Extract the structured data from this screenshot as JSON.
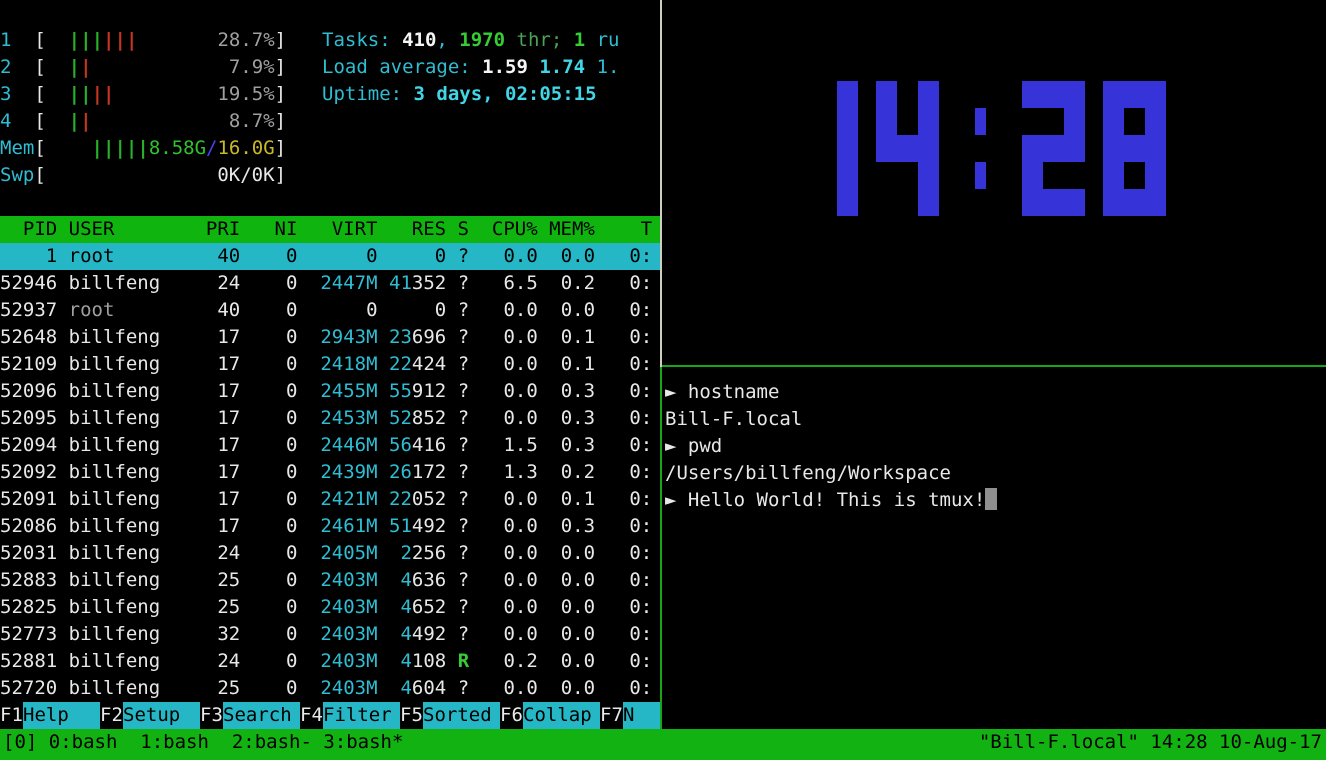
{
  "htop": {
    "meters": {
      "cpus": [
        {
          "label": "1",
          "bars": [
            "g",
            "g",
            "g",
            "r",
            "r",
            "r"
          ],
          "pct": "28.7%"
        },
        {
          "label": "2",
          "bars": [
            "g",
            "r"
          ],
          "pct": "7.9%"
        },
        {
          "label": "3",
          "bars": [
            "g",
            "g",
            "r",
            "r"
          ],
          "pct": "19.5%"
        },
        {
          "label": "4",
          "bars": [
            "g",
            "r"
          ],
          "pct": "8.7%"
        }
      ],
      "mem": {
        "label": "Mem",
        "bar_count": 5,
        "used": "8.58G",
        "separator": "/",
        "total": "16.0G"
      },
      "swp": {
        "label": "Swp",
        "value": "0K/0K"
      }
    },
    "summary_lines": [
      [
        {
          "t": "Tasks: ",
          "s": "cyan"
        },
        {
          "t": "410",
          "s": "whiteb"
        },
        {
          "t": ", ",
          "s": "cyan"
        },
        {
          "t": "1970",
          "s": "greenb"
        },
        {
          "t": " thr; ",
          "s": "greend"
        },
        {
          "t": "1",
          "s": "greenb"
        },
        {
          "t": " ru",
          "s": "cyan"
        }
      ],
      [
        {
          "t": "Load average: ",
          "s": "cyan"
        },
        {
          "t": "1.59 ",
          "s": "whiteb"
        },
        {
          "t": "1.74 ",
          "s": "cyanb"
        },
        {
          "t": "1.",
          "s": "cyan"
        }
      ],
      [
        {
          "t": "Uptime: ",
          "s": "cyan"
        },
        {
          "t": "3 days, 02:05:15",
          "s": "cyanb"
        }
      ]
    ],
    "table": {
      "header": {
        "pid": "PID",
        "user": "USER",
        "pri": "PRI",
        "ni": "NI",
        "virt": "VIRT",
        "res": "RES",
        "s": "S",
        "cpu": "CPU%",
        "mem": "MEM%",
        "time": "T"
      },
      "rows": [
        {
          "pid": "1",
          "user": "root",
          "pri": "40",
          "ni": "0",
          "virt": "0",
          "res_hi": "",
          "res_lo": "0",
          "s": "?",
          "cpu": "0.0",
          "mem": "0.0",
          "time": "0:",
          "selected": true
        },
        {
          "pid": "52946",
          "user": "billfeng",
          "pri": "24",
          "ni": "0",
          "virt": "2447M",
          "res_hi": "41",
          "res_lo": "352",
          "s": "?",
          "cpu": "6.5",
          "mem": "0.2",
          "time": "0:"
        },
        {
          "pid": "52937",
          "user": "root",
          "pri": "40",
          "ni": "0",
          "virt": "0",
          "res_hi": "",
          "res_lo": "0",
          "s": "?",
          "cpu": "0.0",
          "mem": "0.0",
          "time": "0:"
        },
        {
          "pid": "52648",
          "user": "billfeng",
          "pri": "17",
          "ni": "0",
          "virt": "2943M",
          "res_hi": "23",
          "res_lo": "696",
          "s": "?",
          "cpu": "0.0",
          "mem": "0.1",
          "time": "0:"
        },
        {
          "pid": "52109",
          "user": "billfeng",
          "pri": "17",
          "ni": "0",
          "virt": "2418M",
          "res_hi": "22",
          "res_lo": "424",
          "s": "?",
          "cpu": "0.0",
          "mem": "0.1",
          "time": "0:"
        },
        {
          "pid": "52096",
          "user": "billfeng",
          "pri": "17",
          "ni": "0",
          "virt": "2455M",
          "res_hi": "55",
          "res_lo": "912",
          "s": "?",
          "cpu": "0.0",
          "mem": "0.3",
          "time": "0:"
        },
        {
          "pid": "52095",
          "user": "billfeng",
          "pri": "17",
          "ni": "0",
          "virt": "2453M",
          "res_hi": "52",
          "res_lo": "852",
          "s": "?",
          "cpu": "0.0",
          "mem": "0.3",
          "time": "0:"
        },
        {
          "pid": "52094",
          "user": "billfeng",
          "pri": "17",
          "ni": "0",
          "virt": "2446M",
          "res_hi": "56",
          "res_lo": "416",
          "s": "?",
          "cpu": "1.5",
          "mem": "0.3",
          "time": "0:"
        },
        {
          "pid": "52092",
          "user": "billfeng",
          "pri": "17",
          "ni": "0",
          "virt": "2439M",
          "res_hi": "26",
          "res_lo": "172",
          "s": "?",
          "cpu": "1.3",
          "mem": "0.2",
          "time": "0:"
        },
        {
          "pid": "52091",
          "user": "billfeng",
          "pri": "17",
          "ni": "0",
          "virt": "2421M",
          "res_hi": "22",
          "res_lo": "052",
          "s": "?",
          "cpu": "0.0",
          "mem": "0.1",
          "time": "0:"
        },
        {
          "pid": "52086",
          "user": "billfeng",
          "pri": "17",
          "ni": "0",
          "virt": "2461M",
          "res_hi": "51",
          "res_lo": "492",
          "s": "?",
          "cpu": "0.0",
          "mem": "0.3",
          "time": "0:"
        },
        {
          "pid": "52031",
          "user": "billfeng",
          "pri": "24",
          "ni": "0",
          "virt": "2405M",
          "res_hi": "2",
          "res_lo": "256",
          "s": "?",
          "cpu": "0.0",
          "mem": "0.0",
          "time": "0:"
        },
        {
          "pid": "52883",
          "user": "billfeng",
          "pri": "25",
          "ni": "0",
          "virt": "2403M",
          "res_hi": "4",
          "res_lo": "636",
          "s": "?",
          "cpu": "0.0",
          "mem": "0.0",
          "time": "0:"
        },
        {
          "pid": "52825",
          "user": "billfeng",
          "pri": "25",
          "ni": "0",
          "virt": "2403M",
          "res_hi": "4",
          "res_lo": "652",
          "s": "?",
          "cpu": "0.0",
          "mem": "0.0",
          "time": "0:"
        },
        {
          "pid": "52773",
          "user": "billfeng",
          "pri": "32",
          "ni": "0",
          "virt": "2403M",
          "res_hi": "4",
          "res_lo": "492",
          "s": "?",
          "cpu": "0.0",
          "mem": "0.0",
          "time": "0:"
        },
        {
          "pid": "52881",
          "user": "billfeng",
          "pri": "24",
          "ni": "0",
          "virt": "2403M",
          "res_hi": "4",
          "res_lo": "108",
          "s": "R",
          "cpu": "0.2",
          "mem": "0.0",
          "time": "0:"
        },
        {
          "pid": "52720",
          "user": "billfeng",
          "pri": "25",
          "ni": "0",
          "virt": "2403M",
          "res_hi": "4",
          "res_lo": "604",
          "s": "?",
          "cpu": "0.0",
          "mem": "0.0",
          "time": "0:"
        }
      ]
    },
    "fkeys": [
      {
        "key": "F1",
        "label": "Help"
      },
      {
        "key": "F2",
        "label": "Setup"
      },
      {
        "key": "F3",
        "label": "Search"
      },
      {
        "key": "F4",
        "label": "Filter"
      },
      {
        "key": "F5",
        "label": "Sorted"
      },
      {
        "key": "F6",
        "label": "Collap"
      },
      {
        "key": "F7",
        "label": "N"
      }
    ]
  },
  "clock": {
    "time": "14:28"
  },
  "terminal": {
    "prompt_symbol": "►",
    "lines": [
      {
        "prompt": true,
        "text": "hostname"
      },
      {
        "prompt": false,
        "text": "Bill-F.local"
      },
      {
        "prompt": true,
        "text": "pwd"
      },
      {
        "prompt": false,
        "text": "/Users/billfeng/Workspace"
      },
      {
        "prompt": true,
        "text": "Hello World! This is tmux!",
        "cursor": true
      }
    ]
  },
  "statusbar": {
    "session_label": "[0] ",
    "windows": [
      "0:bash ",
      "1:bash ",
      "2:bash-",
      "3:bash*"
    ],
    "right": "\"Bill-F.local\" 14:28 10-Aug-17"
  },
  "colors": {
    "status_green": "#12b212",
    "header_green": "#0fb40f",
    "selection_cyan": "#25b7c5",
    "fkey_cyan": "#25b7c5",
    "clock_blue": "#3634d9",
    "text_cyan": "#2fbdd3",
    "text_cyan_bright": "#41d6e6",
    "text_green": "#35cc35",
    "text_green_dim": "#4aa355",
    "bar_green": "#29b229",
    "bar_red": "#c43522",
    "mem_used_green": "#2fc32f",
    "mem_total_yellow": "#c9b926",
    "slash_blue": "#4743ea",
    "text_white": "#e8e8e8",
    "text_white_bright": "#f5f5f5",
    "text_gray": "#a0a0a0",
    "border_white": "#cfcfc0",
    "border_green": "#17a617",
    "cursor_gray": "#8f8f8f"
  }
}
